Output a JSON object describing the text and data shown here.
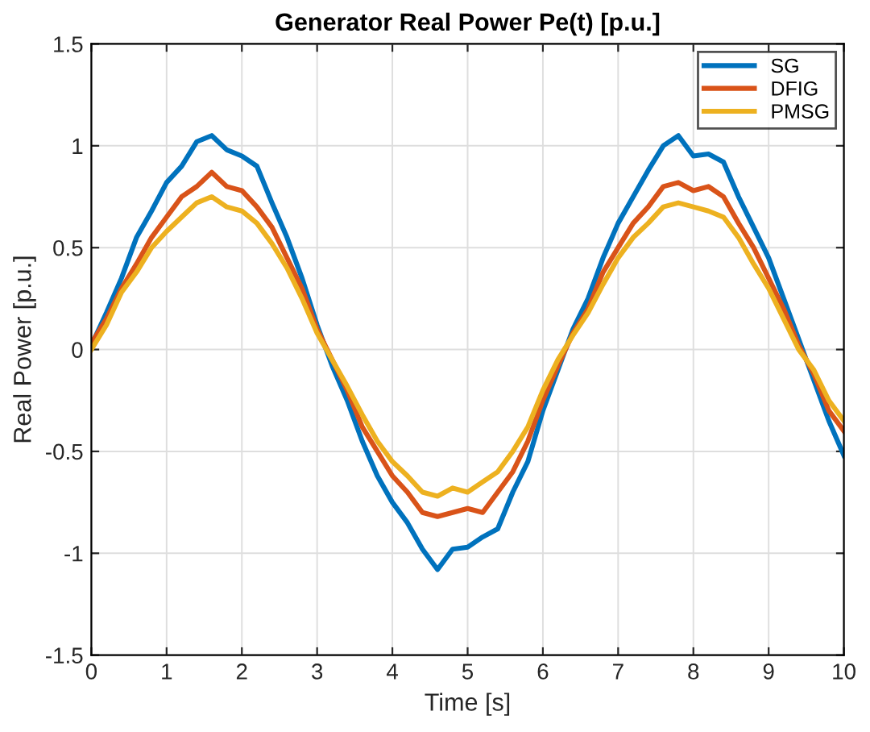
{
  "chart_data": {
    "type": "line",
    "title": "Generator Real Power Pe(t) [p.u.]",
    "xlabel": "Time [s]",
    "ylabel": "Real Power [p.u.]",
    "x": [
      0,
      0.2,
      0.4,
      0.6,
      0.8,
      1,
      1.2,
      1.4,
      1.6,
      1.8,
      2,
      2.2,
      2.4,
      2.6,
      2.8,
      3,
      3.2,
      3.4,
      3.6,
      3.8,
      4,
      4.2,
      4.4,
      4.6,
      4.8,
      5,
      5.2,
      5.4,
      5.6,
      5.8,
      6,
      6.2,
      6.4,
      6.6,
      6.8,
      7,
      7.2,
      7.4,
      7.6,
      7.8,
      8,
      8.2,
      8.4,
      8.6,
      8.8,
      9,
      9.2,
      9.4,
      9.6,
      9.8,
      10
    ],
    "series": [
      {
        "name": "SG",
        "color": "#0072bd",
        "values": [
          0.02,
          0.18,
          0.35,
          0.55,
          0.68,
          0.82,
          0.9,
          1.02,
          1.05,
          0.98,
          0.95,
          0.9,
          0.72,
          0.55,
          0.35,
          0.12,
          -0.08,
          -0.25,
          -0.45,
          -0.62,
          -0.75,
          -0.85,
          -0.98,
          -1.08,
          -0.98,
          -0.97,
          -0.92,
          -0.88,
          -0.7,
          -0.55,
          -0.3,
          -0.1,
          0.1,
          0.25,
          0.45,
          0.62,
          0.75,
          0.88,
          1.0,
          1.05,
          0.95,
          0.96,
          0.92,
          0.75,
          0.6,
          0.45,
          0.25,
          0.05,
          -0.15,
          -0.35,
          -0.52
        ]
      },
      {
        "name": "DFIG",
        "color": "#d95319",
        "values": [
          0.03,
          0.15,
          0.3,
          0.42,
          0.55,
          0.65,
          0.75,
          0.8,
          0.87,
          0.8,
          0.78,
          0.7,
          0.6,
          0.45,
          0.3,
          0.1,
          -0.05,
          -0.2,
          -0.38,
          -0.5,
          -0.62,
          -0.7,
          -0.8,
          -0.82,
          -0.8,
          -0.78,
          -0.8,
          -0.7,
          -0.6,
          -0.45,
          -0.25,
          -0.08,
          0.08,
          0.2,
          0.38,
          0.5,
          0.62,
          0.7,
          0.8,
          0.82,
          0.78,
          0.8,
          0.75,
          0.62,
          0.5,
          0.35,
          0.2,
          0.02,
          -0.12,
          -0.3,
          -0.4
        ]
      },
      {
        "name": "PMSG",
        "color": "#edb120",
        "values": [
          0.0,
          0.12,
          0.28,
          0.38,
          0.5,
          0.58,
          0.65,
          0.72,
          0.75,
          0.7,
          0.68,
          0.62,
          0.52,
          0.4,
          0.25,
          0.08,
          -0.05,
          -0.18,
          -0.32,
          -0.45,
          -0.55,
          -0.62,
          -0.7,
          -0.72,
          -0.68,
          -0.7,
          -0.65,
          -0.6,
          -0.5,
          -0.38,
          -0.2,
          -0.05,
          0.07,
          0.18,
          0.32,
          0.45,
          0.55,
          0.62,
          0.7,
          0.72,
          0.7,
          0.68,
          0.65,
          0.55,
          0.42,
          0.3,
          0.15,
          0.0,
          -0.1,
          -0.25,
          -0.35
        ]
      }
    ],
    "xlim": [
      0,
      10
    ],
    "xticks": [
      0,
      1,
      2,
      3,
      4,
      5,
      6,
      7,
      8,
      9,
      10
    ],
    "ylim": [
      -1.5,
      1.5
    ],
    "yticks": [
      -1.5,
      -1,
      -0.5,
      0,
      0.5,
      1,
      1.5
    ],
    "grid": true,
    "legend": "top right",
    "line_style": "solid",
    "marker": "none"
  }
}
